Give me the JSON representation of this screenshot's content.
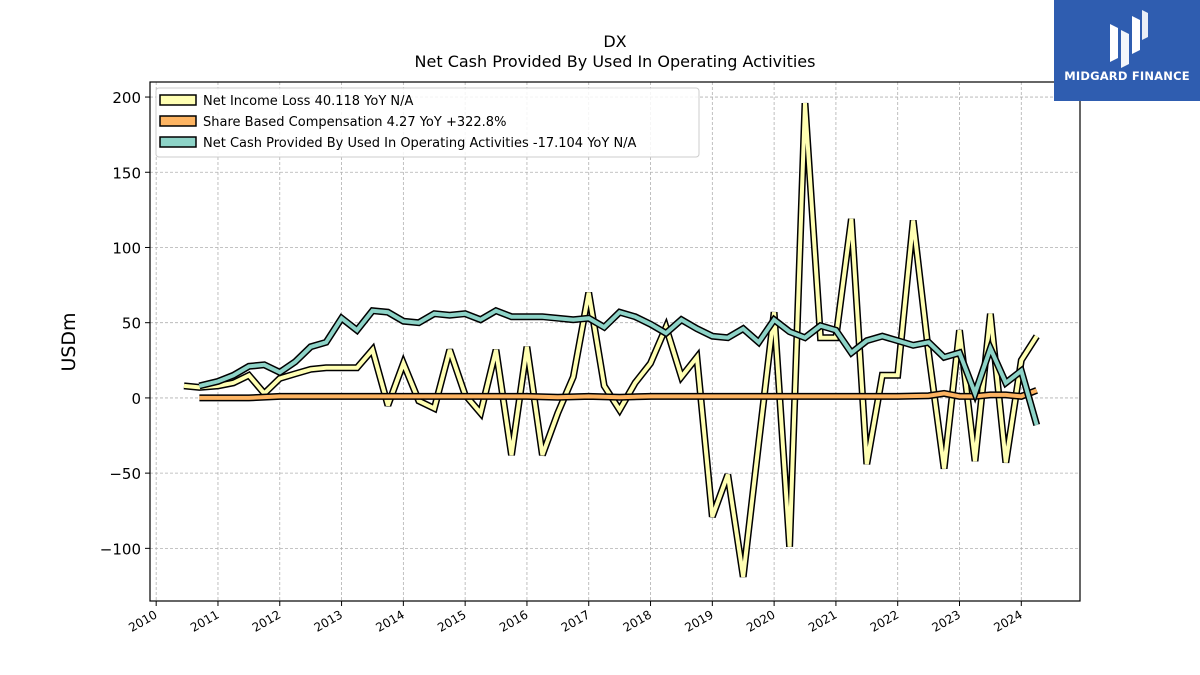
{
  "logo": {
    "text": "MIDGARD FINANCE"
  },
  "chart_data": {
    "type": "line",
    "title": "DX",
    "subtitle": "Net Cash Provided By Used In Operating Activities",
    "ylabel": "USDm",
    "xlabel": "",
    "xlim": [
      2009.9,
      2024.95
    ],
    "ylim": [
      -135,
      210
    ],
    "yticks": [
      -100,
      -50,
      0,
      50,
      100,
      150,
      200
    ],
    "ytick_labels": [
      "−100",
      "−50",
      "0",
      "50",
      "100",
      "150",
      "200"
    ],
    "xticks": [
      2010,
      2011,
      2012,
      2013,
      2014,
      2015,
      2016,
      2017,
      2018,
      2019,
      2020,
      2021,
      2022,
      2023,
      2024
    ],
    "grid": true,
    "legend_position": "top-left",
    "series": [
      {
        "name": "Net Income Loss",
        "legend_label": "Net Income Loss  40.118 YoY N/A",
        "color": "#ffffb3",
        "points": [
          [
            2010.45,
            8
          ],
          [
            2010.7,
            7
          ],
          [
            2011.0,
            8
          ],
          [
            2011.25,
            10
          ],
          [
            2011.5,
            15
          ],
          [
            2011.75,
            3
          ],
          [
            2012.0,
            13
          ],
          [
            2012.25,
            16
          ],
          [
            2012.5,
            19
          ],
          [
            2012.75,
            20
          ],
          [
            2013.0,
            20
          ],
          [
            2013.25,
            20
          ],
          [
            2013.5,
            32
          ],
          [
            2013.75,
            -5
          ],
          [
            2014.0,
            23
          ],
          [
            2014.25,
            -2
          ],
          [
            2014.5,
            -7
          ],
          [
            2014.75,
            32
          ],
          [
            2015.0,
            2
          ],
          [
            2015.25,
            -10
          ],
          [
            2015.5,
            32
          ],
          [
            2015.75,
            -38
          ],
          [
            2016.0,
            34
          ],
          [
            2016.25,
            -38
          ],
          [
            2016.5,
            -10
          ],
          [
            2016.75,
            14
          ],
          [
            2017.0,
            70
          ],
          [
            2017.25,
            8
          ],
          [
            2017.5,
            -8
          ],
          [
            2017.75,
            10
          ],
          [
            2018.0,
            23
          ],
          [
            2018.25,
            47
          ],
          [
            2018.5,
            14
          ],
          [
            2018.75,
            27
          ],
          [
            2019.0,
            -79
          ],
          [
            2019.25,
            -51
          ],
          [
            2019.5,
            -119
          ],
          [
            2019.75,
            -30
          ],
          [
            2020.0,
            57
          ],
          [
            2020.25,
            -99
          ],
          [
            2020.5,
            196
          ],
          [
            2020.75,
            40
          ],
          [
            2021.0,
            40
          ],
          [
            2021.25,
            119
          ],
          [
            2021.5,
            -44
          ],
          [
            2021.75,
            15
          ],
          [
            2022.0,
            15
          ],
          [
            2022.25,
            118
          ],
          [
            2022.5,
            30
          ],
          [
            2022.75,
            -47
          ],
          [
            2023.0,
            45
          ],
          [
            2023.25,
            -42
          ],
          [
            2023.5,
            56
          ],
          [
            2023.75,
            -43
          ],
          [
            2024.0,
            25
          ],
          [
            2024.25,
            41
          ]
        ]
      },
      {
        "name": "Share Based Compensation",
        "legend_label": "Share Based Compensation  4.27 YoY +322.8%",
        "color": "#fdb462",
        "points": [
          [
            2010.7,
            0
          ],
          [
            2011.0,
            0
          ],
          [
            2011.5,
            0
          ],
          [
            2012.0,
            1
          ],
          [
            2012.5,
            1
          ],
          [
            2013.0,
            1
          ],
          [
            2013.5,
            1
          ],
          [
            2014.0,
            1
          ],
          [
            2014.5,
            1
          ],
          [
            2015.0,
            1
          ],
          [
            2015.5,
            1
          ],
          [
            2016.0,
            1
          ],
          [
            2016.5,
            0.5
          ],
          [
            2017.0,
            1
          ],
          [
            2017.5,
            0.5
          ],
          [
            2018.0,
            1
          ],
          [
            2018.5,
            1
          ],
          [
            2019.0,
            1
          ],
          [
            2019.5,
            1
          ],
          [
            2020.0,
            1
          ],
          [
            2020.5,
            1
          ],
          [
            2021.0,
            1
          ],
          [
            2021.5,
            1
          ],
          [
            2022.0,
            1
          ],
          [
            2022.5,
            1.5
          ],
          [
            2022.75,
            3
          ],
          [
            2023.0,
            1
          ],
          [
            2023.25,
            1
          ],
          [
            2023.5,
            2
          ],
          [
            2023.75,
            2
          ],
          [
            2024.0,
            1
          ],
          [
            2024.25,
            5
          ]
        ]
      },
      {
        "name": "Net Cash Provided By Used In Operating Activities",
        "legend_label": "Net Cash Provided By Used In Operating Activities  -17.104 YoY N/A",
        "color": "#8dd3c7",
        "points": [
          [
            2010.7,
            8
          ],
          [
            2011.0,
            11
          ],
          [
            2011.25,
            15
          ],
          [
            2011.5,
            21
          ],
          [
            2011.75,
            22
          ],
          [
            2012.0,
            17
          ],
          [
            2012.25,
            24
          ],
          [
            2012.5,
            34
          ],
          [
            2012.75,
            37
          ],
          [
            2013.0,
            53
          ],
          [
            2013.25,
            45
          ],
          [
            2013.5,
            58
          ],
          [
            2013.75,
            57
          ],
          [
            2014.0,
            51
          ],
          [
            2014.25,
            50
          ],
          [
            2014.5,
            56
          ],
          [
            2014.75,
            55
          ],
          [
            2015.0,
            56
          ],
          [
            2015.25,
            52
          ],
          [
            2015.5,
            58
          ],
          [
            2015.75,
            54
          ],
          [
            2016.0,
            54
          ],
          [
            2016.25,
            54
          ],
          [
            2016.5,
            53
          ],
          [
            2016.75,
            52
          ],
          [
            2017.0,
            53
          ],
          [
            2017.25,
            47
          ],
          [
            2017.5,
            57
          ],
          [
            2017.75,
            54
          ],
          [
            2018.0,
            49
          ],
          [
            2018.25,
            43
          ],
          [
            2018.5,
            52
          ],
          [
            2018.75,
            46
          ],
          [
            2019.0,
            41
          ],
          [
            2019.25,
            40
          ],
          [
            2019.5,
            46
          ],
          [
            2019.75,
            37
          ],
          [
            2020.0,
            52
          ],
          [
            2020.25,
            44
          ],
          [
            2020.5,
            40
          ],
          [
            2020.75,
            48
          ],
          [
            2021.0,
            45
          ],
          [
            2021.25,
            30
          ],
          [
            2021.5,
            38
          ],
          [
            2021.75,
            41
          ],
          [
            2022.0,
            38
          ],
          [
            2022.25,
            35
          ],
          [
            2022.5,
            37
          ],
          [
            2022.75,
            27
          ],
          [
            2023.0,
            30
          ],
          [
            2023.25,
            3
          ],
          [
            2023.5,
            33
          ],
          [
            2023.75,
            10
          ],
          [
            2024.0,
            18
          ],
          [
            2024.25,
            -18
          ]
        ]
      }
    ]
  }
}
